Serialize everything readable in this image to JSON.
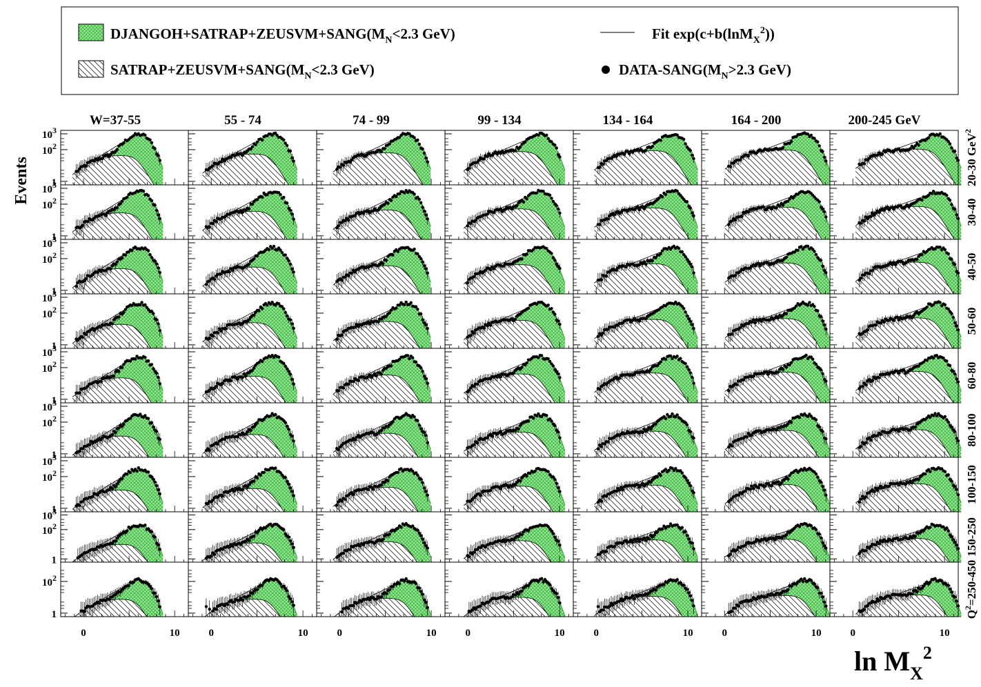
{
  "chart_data": {
    "type": "area",
    "title": "",
    "xlabel": "ln M",
    "xlabel_sub": "X",
    "xlabel_sup": "2",
    "ylabel": "Events",
    "y_scale": "log",
    "xlim": [
      -2.5,
      11.5
    ],
    "ylim": [
      0.6,
      1300
    ],
    "x_ticks": [
      {
        "value": 0,
        "label": "0"
      },
      {
        "value": 10,
        "label": "10"
      }
    ],
    "y_ticks_standard": [
      {
        "value": 1,
        "base": "1",
        "exp": ""
      },
      {
        "value": 100,
        "base": "10",
        "exp": "2"
      },
      {
        "value": 1000,
        "base": "10",
        "exp": "3"
      }
    ],
    "y_ticks_last_row": [
      {
        "value": 1,
        "base": "1",
        "exp": ""
      },
      {
        "value": 100,
        "base": "10",
        "exp": "2"
      }
    ],
    "legend": {
      "placement": "top",
      "entries": [
        {
          "id": "green",
          "swatch": "green-crosshatch",
          "text_main": "DJANGOH+SATRAP+ZEUSVM+SANG(M",
          "text_sub": "N",
          "text_tail": "<2.3 GeV)"
        },
        {
          "id": "hatch",
          "swatch": "diagonal-hatch",
          "text_main": "SATRAP+ZEUSVM+SANG(M",
          "text_sub": "N",
          "text_tail": "<2.3 GeV)"
        },
        {
          "id": "fit",
          "swatch": "line",
          "text_main": "Fit exp(c+b(lnM",
          "text_sub": "X",
          "text_sup": "2",
          "text_tail": "))"
        },
        {
          "id": "data",
          "swatch": "dot",
          "text_main": "DATA-SANG(M",
          "text_sub": "N",
          "text_tail": ">2.3 GeV)"
        }
      ]
    },
    "columns": [
      {
        "label": "W=37-55",
        "peak_x": 6.2
      },
      {
        "label": "55 - 74",
        "peak_x": 6.8
      },
      {
        "label": "74 - 99",
        "peak_x": 7.4
      },
      {
        "label": "99 - 134",
        "peak_x": 8.0
      },
      {
        "label": "134 - 164",
        "peak_x": 8.5
      },
      {
        "label": "164 - 200",
        "peak_x": 8.9
      },
      {
        "label": "200-245 GeV",
        "peak_x": 9.3
      }
    ],
    "rows": [
      {
        "label": "20-30 GeV",
        "label_sup": "2",
        "peak_y": 900
      },
      {
        "label": "30-40",
        "peak_y": 600
      },
      {
        "label": "40-50",
        "peak_y": 500
      },
      {
        "label": "50-60",
        "peak_y": 420
      },
      {
        "label": "60-80",
        "peak_y": 480
      },
      {
        "label": "80-100",
        "peak_y": 280
      },
      {
        "label": "100-150",
        "peak_y": 300
      },
      {
        "label": "150-250",
        "peak_y": 210
      },
      {
        "label": "Q",
        "label_sup": "2",
        "label_tail": "=250-450",
        "peak_y": 120
      }
    ],
    "series": [
      {
        "name": "DJANGOH+SATRAP+ZEUSVM+SANG(MN<2.3 GeV)",
        "color": "#8ee88e"
      },
      {
        "name": "SATRAP+ZEUSVM+SANG(MN<2.3 GeV)",
        "color": "#000000"
      },
      {
        "name": "Fit exp(c+b(lnMX2))",
        "color": "#000000"
      },
      {
        "name": "DATA-SANG(MN>2.3 GeV)",
        "color": "#000000"
      }
    ],
    "colors": {
      "green_fill": "#8ee88e",
      "green_line": "#2ea82e",
      "frame": "#000000"
    }
  }
}
